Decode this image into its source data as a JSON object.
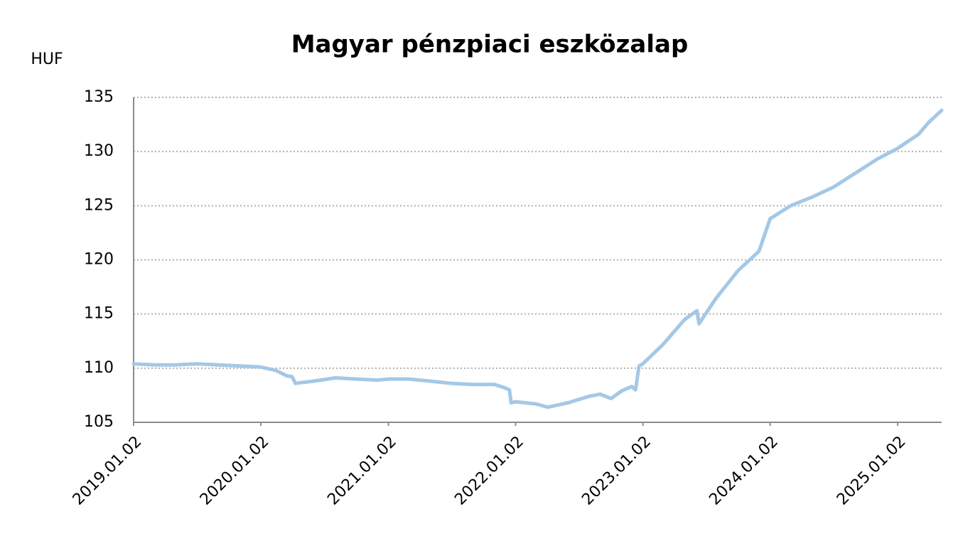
{
  "chart_data": {
    "type": "line",
    "title": "Magyar pénzpiaci eszközalap",
    "y_label": "HUF",
    "x": [
      "2019.01.02",
      "2019.03.01",
      "2019.05.02",
      "2019.07.01",
      "2019.09.02",
      "2019.11.04",
      "2020.01.02",
      "2020.02.14",
      "2020.03.16",
      "2020.04.01",
      "2020.04.10",
      "2020.06.01",
      "2020.08.03",
      "2020.10.01",
      "2020.12.01",
      "2021.01.04",
      "2021.03.01",
      "2021.05.03",
      "2021.07.01",
      "2021.09.01",
      "2021.11.02",
      "2021.12.01",
      "2021.12.15",
      "2021.12.20",
      "2022.01.03",
      "2022.03.01",
      "2022.04.04",
      "2022.06.01",
      "2022.08.01",
      "2022.09.01",
      "2022.10.03",
      "2022.11.02",
      "2022.12.01",
      "2022.12.12",
      "2022.12.22",
      "2023.01.02",
      "2023.03.01",
      "2023.05.02",
      "2023.06.06",
      "2023.06.12",
      "2023.08.01",
      "2023.10.02",
      "2023.12.01",
      "2024.01.02",
      "2024.03.01",
      "2024.05.02",
      "2024.07.01",
      "2024.09.02",
      "2024.11.04",
      "2025.01.02",
      "2025.03.03",
      "2025.04.01",
      "2025.05.08"
    ],
    "series": [
      {
        "name": "Magyar pénzpiaci eszközalap",
        "color": "#a4c8e6",
        "values": [
          110.4,
          110.3,
          110.3,
          110.4,
          110.3,
          110.2,
          110.1,
          109.8,
          109.3,
          109.2,
          108.6,
          108.8,
          109.1,
          109.0,
          108.9,
          109.0,
          109.0,
          108.8,
          108.6,
          108.5,
          108.5,
          108.2,
          108.0,
          106.8,
          106.9,
          106.7,
          106.4,
          106.8,
          107.4,
          107.6,
          107.2,
          107.9,
          108.3,
          108.0,
          110.2,
          110.4,
          112.2,
          114.5,
          115.3,
          114.1,
          116.5,
          119.0,
          120.8,
          123.8,
          125.0,
          125.8,
          126.7,
          128.0,
          129.3,
          130.3,
          131.6,
          132.7,
          133.8
        ]
      }
    ],
    "xlim": [
      "2019.01.02",
      "2025.05.08"
    ],
    "xticks": [
      "2019.01.02",
      "2020.01.02",
      "2021.01.02",
      "2022.01.02",
      "2023.01.02",
      "2024.01.02",
      "2025.01.02"
    ],
    "ylim": [
      105,
      135
    ],
    "yticks": [
      105,
      110,
      115,
      120,
      125,
      130,
      135
    ],
    "grid": true
  }
}
